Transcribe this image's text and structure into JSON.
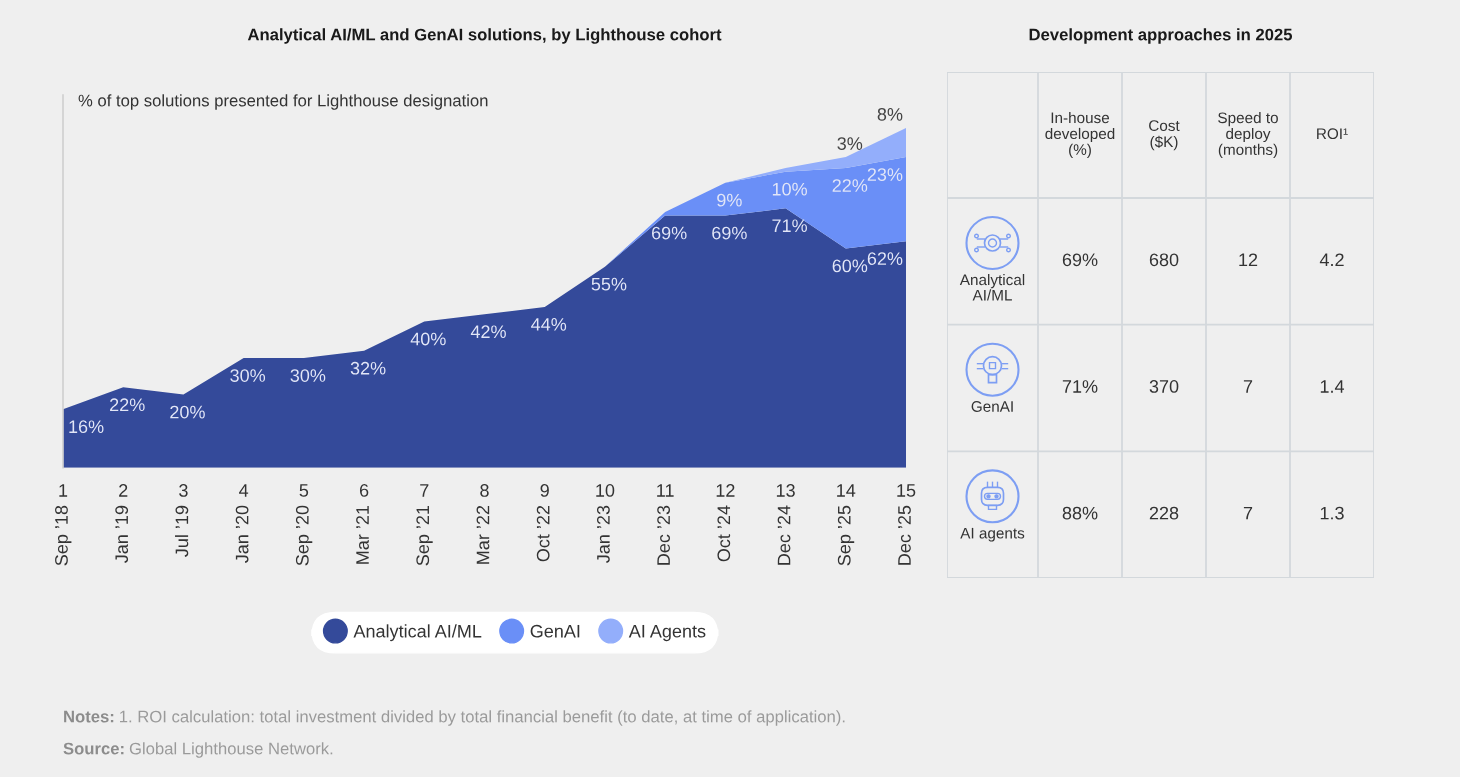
{
  "chart_data": [
    {
      "type": "area",
      "title": "Analytical AI/ML and GenAI solutions, by Lighthouse cohort",
      "ylabel": "% of top solutions presented for Lighthouse designation",
      "categories": [
        "1\nSep ’18",
        "2\nJan ’19",
        "3\nJul ’19",
        "4\nJan ’20",
        "5\nSep ’20",
        "6\nMar ’21",
        "7\nSep ’21",
        "8\nMar ’22",
        "9\nOct ’22",
        "10\nJan ’23",
        "11\nDec ’23",
        "12\nOct ’24",
        "13\nDec ’24",
        "14\nSep ’25",
        "15\nDec ’25"
      ],
      "stacked": true,
      "ylim": [
        0,
        102
      ],
      "legend": "bottom",
      "series": [
        {
          "name": "Analytical AI/ML",
          "color": "#344a9a",
          "values": [
            16,
            22,
            20,
            30,
            30,
            32,
            40,
            42,
            44,
            55,
            69,
            69,
            71,
            60,
            62
          ],
          "value_labels": [
            "16%",
            "22%",
            "20%",
            "30%",
            "30%",
            "32%",
            "40%",
            "42%",
            "44%",
            "55%",
            "69%",
            "69%",
            "71%",
            "60%",
            "62%"
          ]
        },
        {
          "name": "GenAI",
          "color": "#6a8ff7",
          "values": [
            null,
            null,
            null,
            null,
            null,
            null,
            null,
            null,
            null,
            0,
            1,
            9,
            10,
            22,
            23
          ],
          "value_labels": [
            null,
            null,
            null,
            null,
            null,
            null,
            null,
            null,
            null,
            null,
            null,
            "9%",
            "10%",
            "22%",
            "23%"
          ]
        },
        {
          "name": "AI Agents",
          "color": "#93aefb",
          "values": [
            null,
            null,
            null,
            null,
            null,
            null,
            null,
            null,
            null,
            null,
            null,
            0,
            1,
            3,
            8
          ],
          "value_labels": [
            null,
            null,
            null,
            null,
            null,
            null,
            null,
            null,
            null,
            null,
            null,
            null,
            null,
            "3%",
            "8%"
          ]
        }
      ],
      "annotations": [
        "Notes: 1. ROI calculation: total investment divided by total financial benefit (to date, at time of application).",
        "Source: Global Lighthouse Network."
      ]
    },
    {
      "type": "other",
      "title": "Development approaches in 2025",
      "categories": [
        "In-house\ndeveloped\n(%)",
        "Cost\n($K)",
        "Speed to\ndeploy\n(months)",
        "ROI¹"
      ],
      "y_categories": [
        "Analytical\nAI/ML",
        "GenAI",
        "AI agents"
      ],
      "cell_labels": [
        [
          "69%",
          "680",
          "12",
          "4.2"
        ],
        [
          "71%",
          "370",
          "7",
          "1.4"
        ],
        [
          "88%",
          "228",
          "7",
          "1.3"
        ]
      ]
    }
  ]
}
